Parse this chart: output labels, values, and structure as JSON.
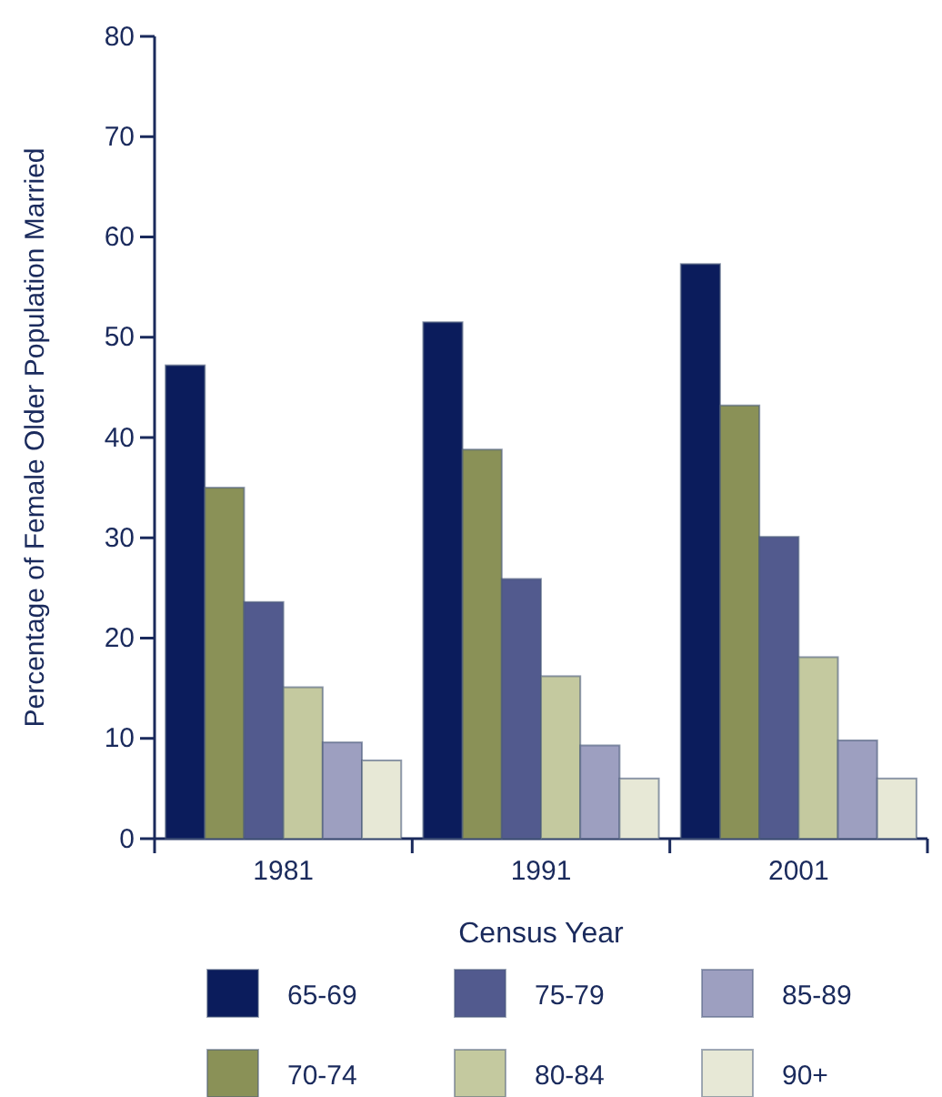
{
  "chart_data": {
    "type": "bar",
    "xlabel": "Census Year",
    "ylabel": "Percentage of Female Older Population Married",
    "categories": [
      "1981",
      "1991",
      "2001"
    ],
    "series": [
      {
        "name": "65-69",
        "color": "#0b1c5c",
        "values": [
          47.2,
          51.5,
          57.3
        ]
      },
      {
        "name": "70-74",
        "color": "#8a9157",
        "values": [
          35,
          38.8,
          43.2
        ]
      },
      {
        "name": "75-79",
        "color": "#525a8e",
        "values": [
          23.6,
          25.9,
          30.1
        ]
      },
      {
        "name": "80-84",
        "color": "#c4c99f",
        "values": [
          15.1,
          16.2,
          18.1
        ]
      },
      {
        "name": "85-89",
        "color": "#9d9fc0",
        "values": [
          9.6,
          9.3,
          9.8
        ]
      },
      {
        "name": "90+",
        "color": "#e7e8d6",
        "values": [
          7.8,
          6,
          6
        ]
      }
    ],
    "ylim": [
      0,
      80
    ],
    "yticks": [
      0,
      10,
      20,
      30,
      40,
      50,
      60,
      70,
      80
    ],
    "grid": false,
    "legend": "bottom"
  }
}
